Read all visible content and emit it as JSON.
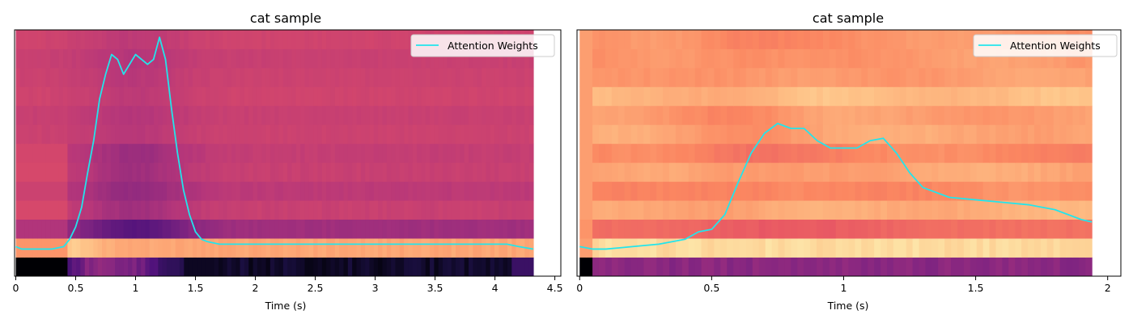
{
  "figure": {
    "background": "#ffffff"
  },
  "chart_data": [
    {
      "type": "heatmap",
      "title": "cat sample",
      "xlabel": "Time (s)",
      "ylabel": "",
      "xlim": [
        -0.01,
        4.55
      ],
      "data_xmax": 4.32,
      "xticks": [
        0,
        0.5,
        1,
        1.5,
        2,
        2.5,
        3,
        3.5,
        4,
        4.5
      ],
      "xtick_labels": [
        "0",
        "0.5",
        "1",
        "1.5",
        "2",
        "2.5",
        "3",
        "3.5",
        "4",
        "4.5"
      ],
      "legend": {
        "label": "Attention Weights",
        "placement": "upper-right"
      },
      "line_color": "#22e5ec",
      "heatmap_colormap": "magma",
      "attention_weights": {
        "x": [
          0.0,
          0.05,
          0.1,
          0.2,
          0.3,
          0.4,
          0.45,
          0.5,
          0.55,
          0.6,
          0.65,
          0.7,
          0.75,
          0.8,
          0.85,
          0.9,
          0.95,
          1.0,
          1.05,
          1.1,
          1.15,
          1.2,
          1.25,
          1.3,
          1.35,
          1.4,
          1.45,
          1.5,
          1.55,
          1.6,
          1.7,
          2.0,
          2.5,
          3.0,
          3.5,
          4.0,
          4.1,
          4.2,
          4.32
        ],
        "y": [
          0.12,
          0.11,
          0.11,
          0.11,
          0.11,
          0.12,
          0.15,
          0.2,
          0.28,
          0.42,
          0.55,
          0.72,
          0.82,
          0.9,
          0.88,
          0.82,
          0.86,
          0.9,
          0.88,
          0.86,
          0.88,
          0.97,
          0.88,
          0.68,
          0.5,
          0.35,
          0.25,
          0.18,
          0.15,
          0.14,
          0.13,
          0.13,
          0.13,
          0.13,
          0.13,
          0.13,
          0.13,
          0.12,
          0.11
        ]
      },
      "heatmap_rows": [
        {
          "base": 0.03,
          "profile": "dark"
        },
        {
          "base": 0.82,
          "profile": "bright"
        },
        {
          "base": 0.45,
          "profile": "dip"
        },
        {
          "base": 0.55,
          "profile": "dip"
        },
        {
          "base": 0.52,
          "profile": "dip"
        },
        {
          "base": 0.55,
          "profile": "dip"
        },
        {
          "base": 0.54,
          "profile": "dip"
        },
        {
          "base": 0.56,
          "profile": "mild"
        },
        {
          "base": 0.55,
          "profile": "mild"
        },
        {
          "base": 0.57,
          "profile": "mild"
        },
        {
          "base": 0.56,
          "profile": "mild"
        },
        {
          "base": 0.55,
          "profile": "mild"
        },
        {
          "base": 0.57,
          "profile": "mild"
        }
      ]
    },
    {
      "type": "heatmap",
      "title": "cat sample",
      "xlabel": "Time (s)",
      "ylabel": "",
      "xlim": [
        -0.01,
        2.05
      ],
      "data_xmax": 1.94,
      "xticks": [
        0,
        0.5,
        1,
        1.5,
        2
      ],
      "xtick_labels": [
        "0",
        "0.5",
        "1",
        "1.5",
        "2"
      ],
      "legend": {
        "label": "Attention Weights",
        "placement": "upper-right"
      },
      "line_color": "#22e5ec",
      "heatmap_colormap": "magma",
      "attention_weights": {
        "x": [
          0.0,
          0.05,
          0.1,
          0.2,
          0.3,
          0.4,
          0.45,
          0.5,
          0.55,
          0.6,
          0.65,
          0.7,
          0.75,
          0.8,
          0.85,
          0.9,
          0.95,
          1.0,
          1.05,
          1.1,
          1.15,
          1.2,
          1.25,
          1.3,
          1.4,
          1.5,
          1.6,
          1.7,
          1.8,
          1.9,
          1.94
        ],
        "y": [
          0.12,
          0.11,
          0.11,
          0.12,
          0.13,
          0.15,
          0.18,
          0.19,
          0.25,
          0.38,
          0.5,
          0.58,
          0.62,
          0.6,
          0.6,
          0.55,
          0.52,
          0.52,
          0.52,
          0.55,
          0.56,
          0.5,
          0.42,
          0.36,
          0.32,
          0.31,
          0.3,
          0.29,
          0.27,
          0.23,
          0.22
        ]
      },
      "heatmap_rows": [
        {
          "base": 0.42,
          "profile": "flat"
        },
        {
          "base": 0.93,
          "profile": "flat"
        },
        {
          "base": 0.72,
          "profile": "flat"
        },
        {
          "base": 0.84,
          "profile": "wave"
        },
        {
          "base": 0.76,
          "profile": "wave"
        },
        {
          "base": 0.82,
          "profile": "wave"
        },
        {
          "base": 0.75,
          "profile": "wave"
        },
        {
          "base": 0.82,
          "profile": "wave"
        },
        {
          "base": 0.8,
          "profile": "wave"
        },
        {
          "base": 0.87,
          "profile": "wave"
        },
        {
          "base": 0.8,
          "profile": "wave"
        },
        {
          "base": 0.79,
          "profile": "wave"
        },
        {
          "base": 0.78,
          "profile": "wave"
        }
      ]
    }
  ]
}
